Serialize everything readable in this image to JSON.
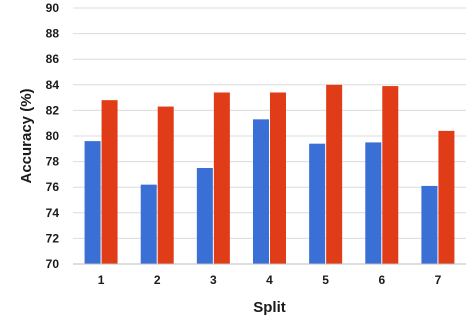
{
  "chart_data": {
    "type": "bar",
    "title": "",
    "xlabel": "Split",
    "ylabel": "Accuracy (%)",
    "categories": [
      "1",
      "2",
      "3",
      "4",
      "5",
      "6",
      "7"
    ],
    "series": [
      {
        "color": "#3a6fd6",
        "values": [
          79.6,
          76.2,
          77.5,
          81.3,
          79.4,
          79.5,
          76.1
        ]
      },
      {
        "color": "#e03c18",
        "values": [
          82.8,
          82.3,
          83.4,
          83.4,
          84.0,
          83.9,
          80.4
        ]
      }
    ],
    "ylim": [
      70,
      90
    ],
    "yticks": [
      "70",
      "72",
      "74",
      "76",
      "78",
      "80",
      "82",
      "84",
      "86",
      "88",
      "90"
    ],
    "grid": true,
    "legend": "none"
  }
}
